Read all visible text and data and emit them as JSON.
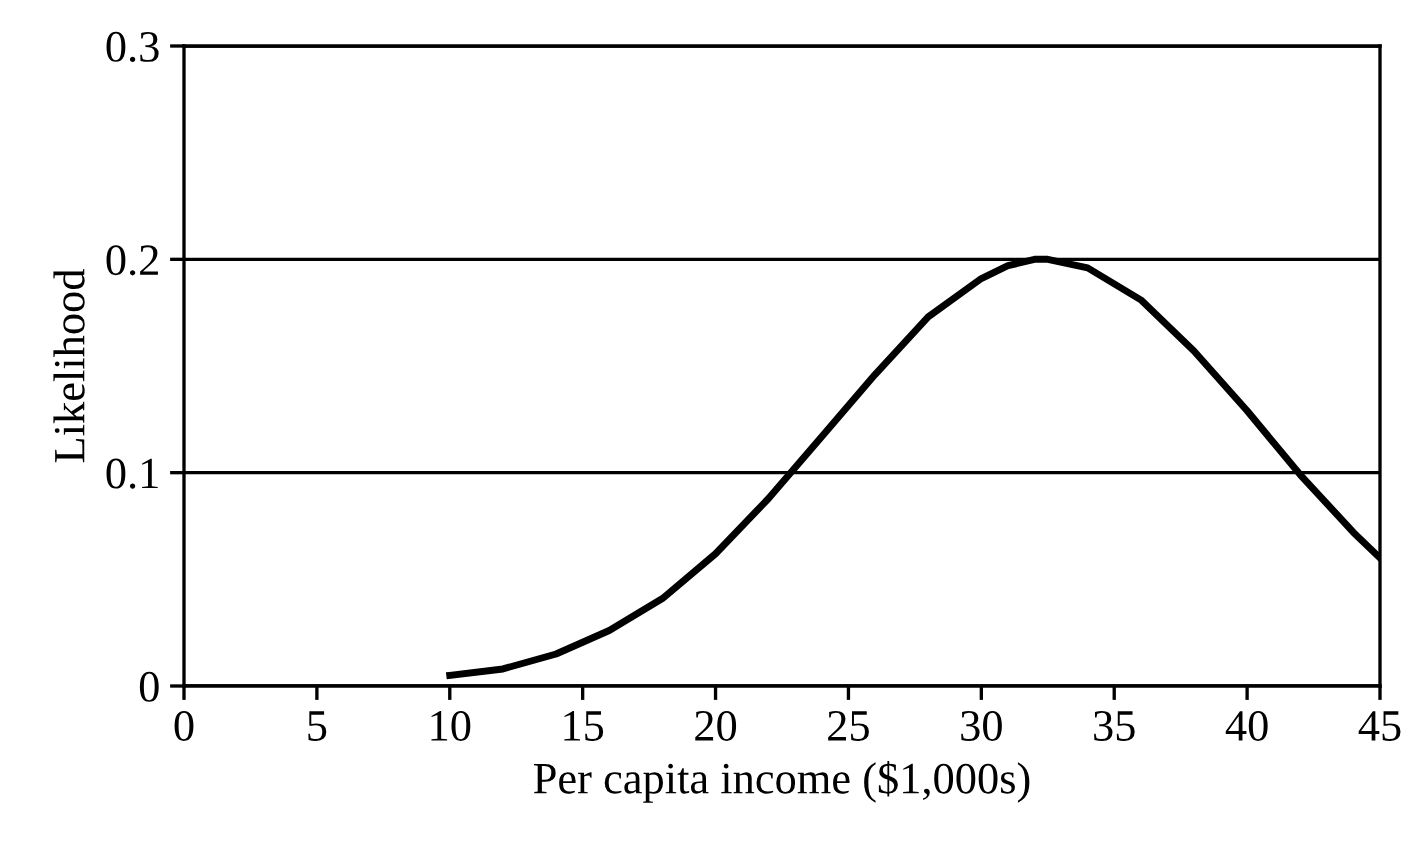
{
  "chart_data": {
    "type": "line",
    "xlabel": "Per capita income ($1,000s)",
    "ylabel": "Likelihood",
    "x": [
      10,
      12,
      14,
      16,
      18,
      20,
      22,
      24,
      26,
      28,
      30,
      31,
      32,
      32.5,
      34,
      36,
      38,
      40,
      42,
      44,
      45
    ],
    "series": [
      {
        "color": "#000000",
        "values": [
          0.005,
          0.008,
          0.015,
          0.026,
          0.041,
          0.062,
          0.088,
          0.117,
          0.146,
          0.173,
          0.191,
          0.197,
          0.2,
          0.2,
          0.196,
          0.181,
          0.157,
          0.129,
          0.099,
          0.072,
          0.06
        ]
      }
    ],
    "xlim": [
      0,
      45
    ],
    "xticks": [
      0,
      5,
      10,
      15,
      20,
      25,
      30,
      35,
      40,
      45
    ],
    "ylim": [
      0,
      0.3
    ],
    "yticks": [
      0,
      0.1,
      0.2,
      0.3
    ],
    "grid": "y",
    "legend": false,
    "marker": "none",
    "line_style": "solid"
  }
}
